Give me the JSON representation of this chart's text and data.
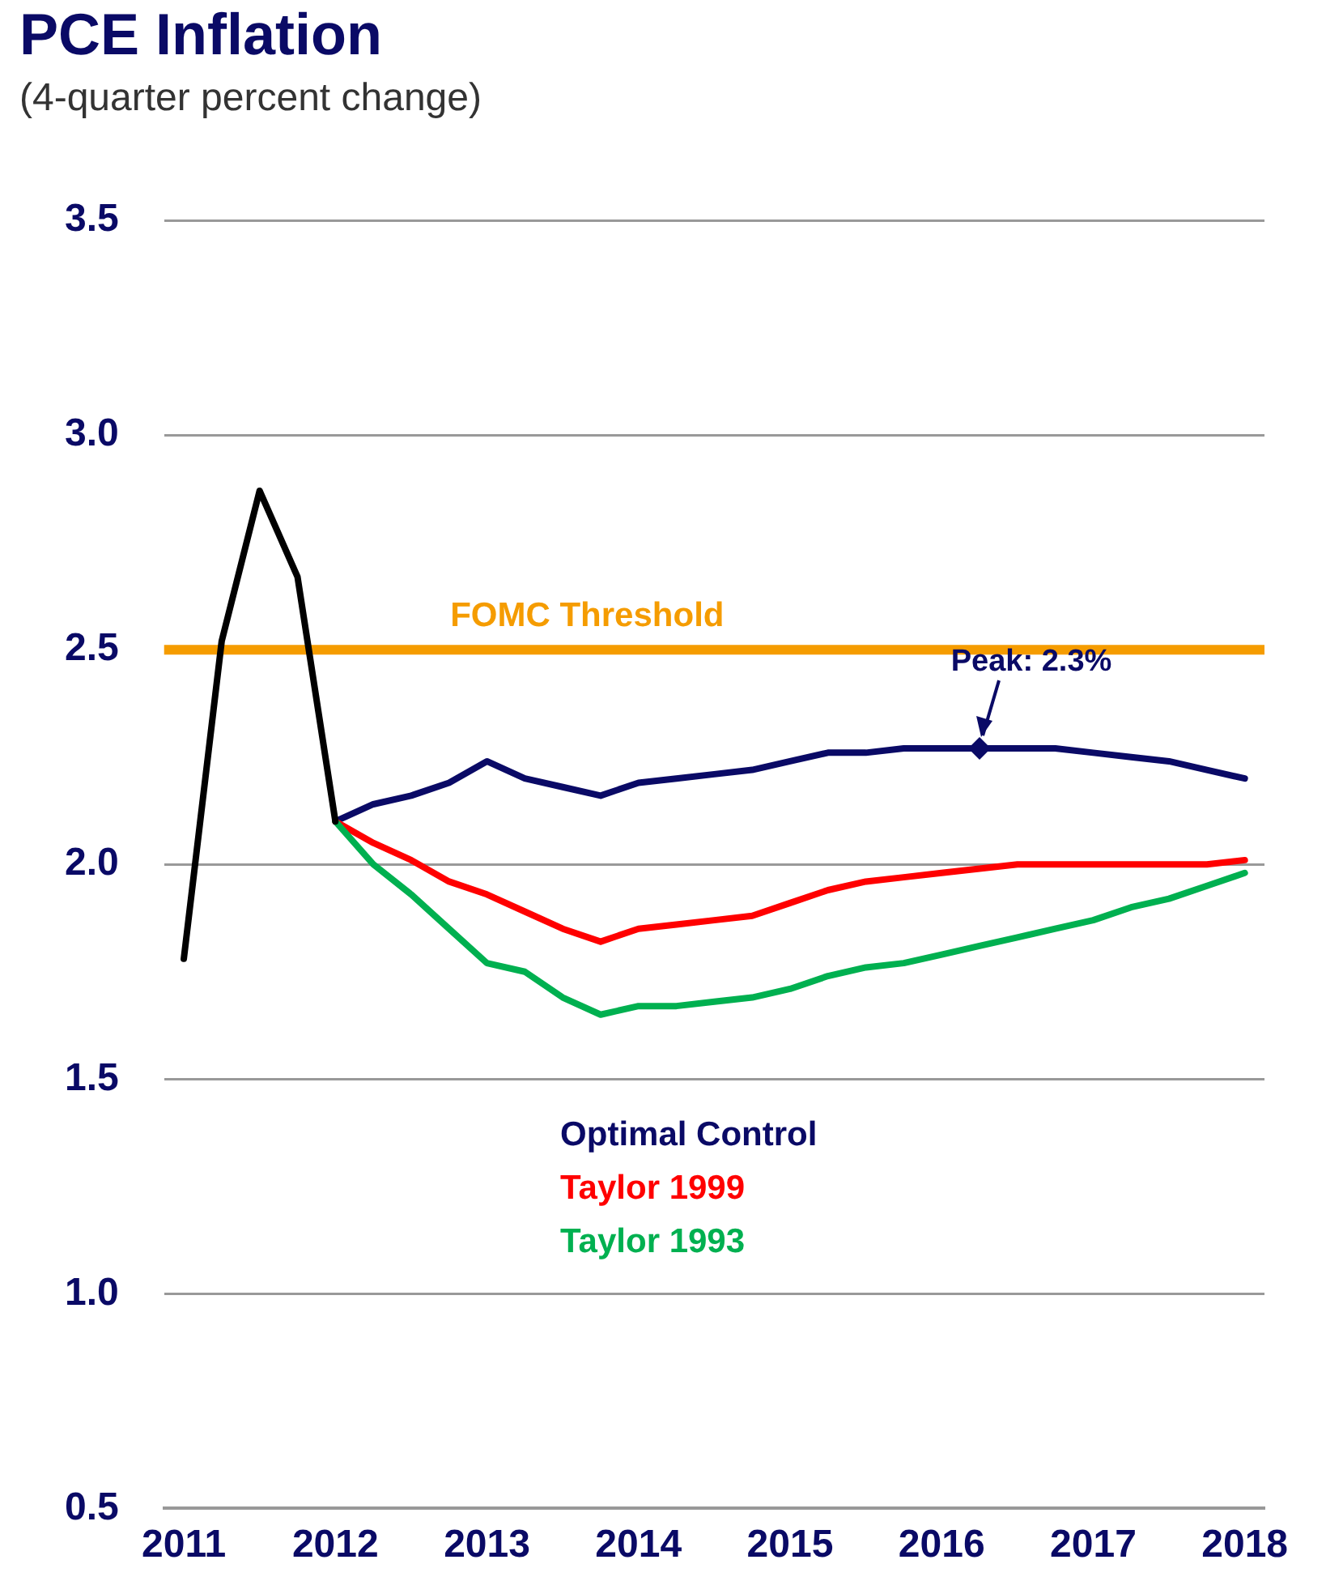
{
  "chart_data": {
    "type": "line",
    "title": "PCE Inflation",
    "subtitle": "(4-quarter percent change)",
    "xlim": [
      2010.87,
      2018.13
    ],
    "xticks": [
      2011,
      2012,
      2013,
      2014,
      2015,
      2016,
      2017,
      2018
    ],
    "ylim": [
      0.5,
      3.5
    ],
    "yticks": [
      0.5,
      {
        "value": 1,
        "label": "1.0"
      },
      1.5,
      {
        "value": 2,
        "label": "2.0"
      },
      2.5,
      {
        "value": 3,
        "label": "3.0"
      },
      3.5
    ],
    "grid": "y",
    "legend": "bottom",
    "marker": "none",
    "line_style": "solid",
    "series": [
      {
        "color": "#000000",
        "x": [
          2011,
          2011.25,
          2011.5,
          2011.75,
          2012
        ],
        "values": [
          1.78,
          2.52,
          2.87,
          2.67,
          2.1
        ]
      },
      {
        "name": "Taylor 1993",
        "color": "#00b050",
        "x": [
          2012,
          2012.25,
          2012.5,
          2012.75,
          2013,
          2013.25,
          2013.5,
          2013.75,
          2014,
          2014.25,
          2014.5,
          2014.75,
          2015,
          2015.25,
          2015.5,
          2015.75,
          2016,
          2016.25,
          2016.5,
          2016.75,
          2017,
          2017.25,
          2017.5,
          2017.75,
          2018
        ],
        "values": [
          2.1,
          2.0,
          1.93,
          1.85,
          1.77,
          1.75,
          1.69,
          1.65,
          1.67,
          1.67,
          1.68,
          1.69,
          1.71,
          1.74,
          1.76,
          1.77,
          1.79,
          1.81,
          1.83,
          1.85,
          1.87,
          1.9,
          1.92,
          1.95,
          1.98
        ]
      },
      {
        "name": "Taylor 1999",
        "color": "#ff0000",
        "x": [
          2012,
          2012.25,
          2012.5,
          2012.75,
          2013,
          2013.25,
          2013.5,
          2013.75,
          2014,
          2014.25,
          2014.5,
          2014.75,
          2015,
          2015.25,
          2015.5,
          2015.75,
          2016,
          2016.25,
          2016.5,
          2016.75,
          2017,
          2017.25,
          2017.5,
          2017.75,
          2018
        ],
        "values": [
          2.1,
          2.05,
          2.01,
          1.96,
          1.93,
          1.89,
          1.85,
          1.82,
          1.85,
          1.86,
          1.87,
          1.88,
          1.91,
          1.94,
          1.96,
          1.97,
          1.98,
          1.99,
          2.0,
          2.0,
          2.0,
          2.0,
          2.0,
          2.0,
          2.01
        ]
      },
      {
        "name": "Optimal Control",
        "color": "#0a0a66",
        "x": [
          2012,
          2012.25,
          2012.5,
          2012.75,
          2013,
          2013.25,
          2013.5,
          2013.75,
          2014,
          2014.25,
          2014.5,
          2014.75,
          2015,
          2015.25,
          2015.5,
          2015.75,
          2016,
          2016.25,
          2016.5,
          2016.75,
          2017,
          2017.25,
          2017.5,
          2017.75,
          2018
        ],
        "values": [
          2.1,
          2.14,
          2.16,
          2.19,
          2.24,
          2.2,
          2.18,
          2.16,
          2.19,
          2.2,
          2.21,
          2.22,
          2.24,
          2.26,
          2.26,
          2.27,
          2.27,
          2.27,
          2.27,
          2.27,
          2.26,
          2.25,
          2.24,
          2.22,
          2.2
        ]
      }
    ],
    "ref_lines": [
      {
        "axis": "y",
        "value": 2.5,
        "label": "FOMC Threshold",
        "color": "#f59c00"
      }
    ],
    "annotations": [
      {
        "text": "Peak: 2.3%",
        "x": 2016.25,
        "y": 2.27
      }
    ]
  }
}
